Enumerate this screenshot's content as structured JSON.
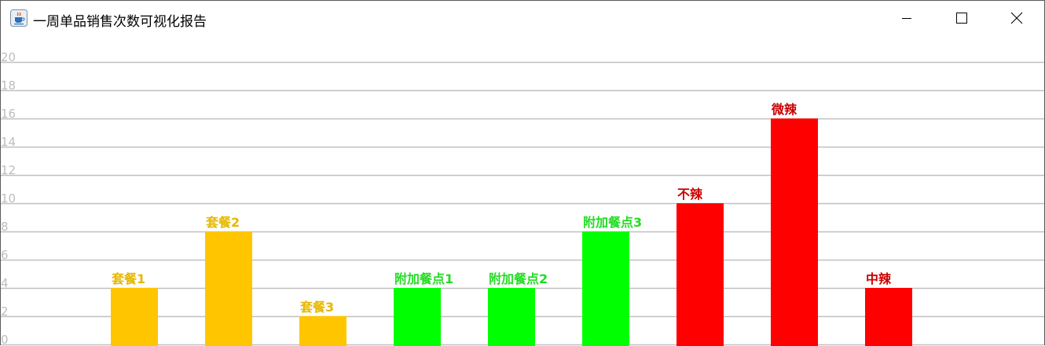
{
  "window": {
    "title": "一周单品销售次数可视化报告",
    "icon": "java-coffee-cup-icon",
    "controls": [
      "minimize-icon",
      "maximize-icon",
      "close-icon"
    ]
  },
  "chart_data": {
    "type": "bar",
    "title": "",
    "xlabel": "",
    "ylabel": "",
    "ylim": [
      0,
      20
    ],
    "yticks": [
      "0",
      "2",
      "4",
      "6",
      "8",
      "10",
      "12",
      "14",
      "16",
      "18",
      "20"
    ],
    "grid": true,
    "categories": [
      "套餐1",
      "套餐2",
      "套餐3",
      "附加餐点1",
      "附加餐点2",
      "附加餐点3",
      "不辣",
      "微辣",
      "中辣"
    ],
    "values": [
      4,
      8,
      2,
      4,
      4,
      8,
      10,
      16,
      4
    ],
    "label_colors": [
      "#e6b800",
      "#e6b800",
      "#e6b800",
      "#22dd22",
      "#22dd22",
      "#22dd22",
      "#cc0000",
      "#cc0000",
      "#cc0000"
    ],
    "bar_colors": [
      "#ffc600",
      "#ffc600",
      "#ffc600",
      "#00ff00",
      "#00ff00",
      "#00ff00",
      "#ff0000",
      "#ff0000",
      "#ff0000"
    ]
  }
}
